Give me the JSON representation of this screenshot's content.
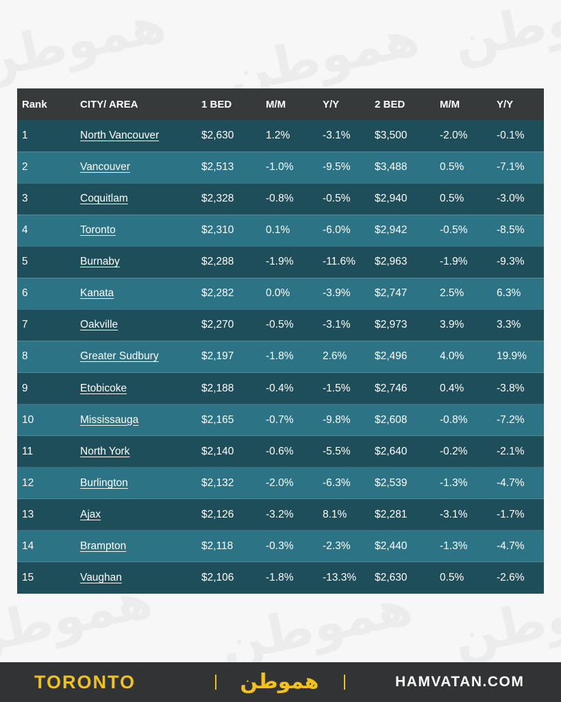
{
  "table": {
    "headers": [
      "Rank",
      "CITY/ AREA",
      "1 BED",
      "M/M",
      "Y/Y",
      "2 BED",
      "M/M",
      "Y/Y"
    ],
    "rows": [
      [
        "1",
        "North Vancouver",
        "$2,630",
        "1.2%",
        "-3.1%",
        "$3,500",
        "-2.0%",
        "-0.1%"
      ],
      [
        "2",
        "Vancouver",
        "$2,513",
        "-1.0%",
        "-9.5%",
        "$3,488",
        "0.5%",
        "-7.1%"
      ],
      [
        "3",
        "Coquitlam",
        "$2,328",
        "-0.8%",
        "-0.5%",
        "$2,940",
        "0.5%",
        "-3.0%"
      ],
      [
        "4",
        "Toronto",
        "$2,310",
        "0.1%",
        "-6.0%",
        "$2,942",
        "-0.5%",
        "-8.5%"
      ],
      [
        "5",
        "Burnaby",
        "$2,288",
        "-1.9%",
        "-11.6%",
        "$2,963",
        "-1.9%",
        "-9.3%"
      ],
      [
        "6",
        "Kanata",
        "$2,282",
        "0.0%",
        "-3.9%",
        "$2,747",
        "2.5%",
        "6.3%"
      ],
      [
        "7",
        "Oakville",
        "$2,270",
        "-0.5%",
        "-3.1%",
        "$2,973",
        "3.9%",
        "3.3%"
      ],
      [
        "8",
        "Greater Sudbury",
        "$2,197",
        "-1.8%",
        "2.6%",
        "$2,496",
        "4.0%",
        "19.9%"
      ],
      [
        "9",
        "Etobicoke",
        "$2,188",
        "-0.4%",
        "-1.5%",
        "$2,746",
        "0.4%",
        "-3.8%"
      ],
      [
        "10",
        "Mississauga",
        "$2,165",
        "-0.7%",
        "-9.8%",
        "$2,608",
        "-0.8%",
        "-7.2%"
      ],
      [
        "11",
        "North York",
        "$2,140",
        "-0.6%",
        "-5.5%",
        "$2,640",
        "-0.2%",
        "-2.1%"
      ],
      [
        "12",
        "Burlington",
        "$2,132",
        "-2.0%",
        "-6.3%",
        "$2,539",
        "-1.3%",
        "-4.7%"
      ],
      [
        "13",
        "Ajax",
        "$2,126",
        "-3.2%",
        "8.1%",
        "$2,281",
        "-3.1%",
        "-1.7%"
      ],
      [
        "14",
        "Brampton",
        "$2,118",
        "-0.3%",
        "-2.3%",
        "$2,440",
        "-1.3%",
        "-4.7%"
      ],
      [
        "15",
        "Vaughan",
        "$2,106",
        "-1.8%",
        "-13.3%",
        "$2,630",
        "0.5%",
        "-2.6%"
      ]
    ]
  },
  "footer": {
    "city": "TORONTO",
    "logo_text": "همو‌طن",
    "site": "HAMVATAN.COM"
  },
  "watermark": {
    "text": "همو‌طن"
  },
  "colors": {
    "header_bg": "#363a3b",
    "row_dark": "#1e4e5a",
    "row_light": "#2c7385",
    "accent": "#f2c218",
    "footer_bg": "#323334"
  }
}
